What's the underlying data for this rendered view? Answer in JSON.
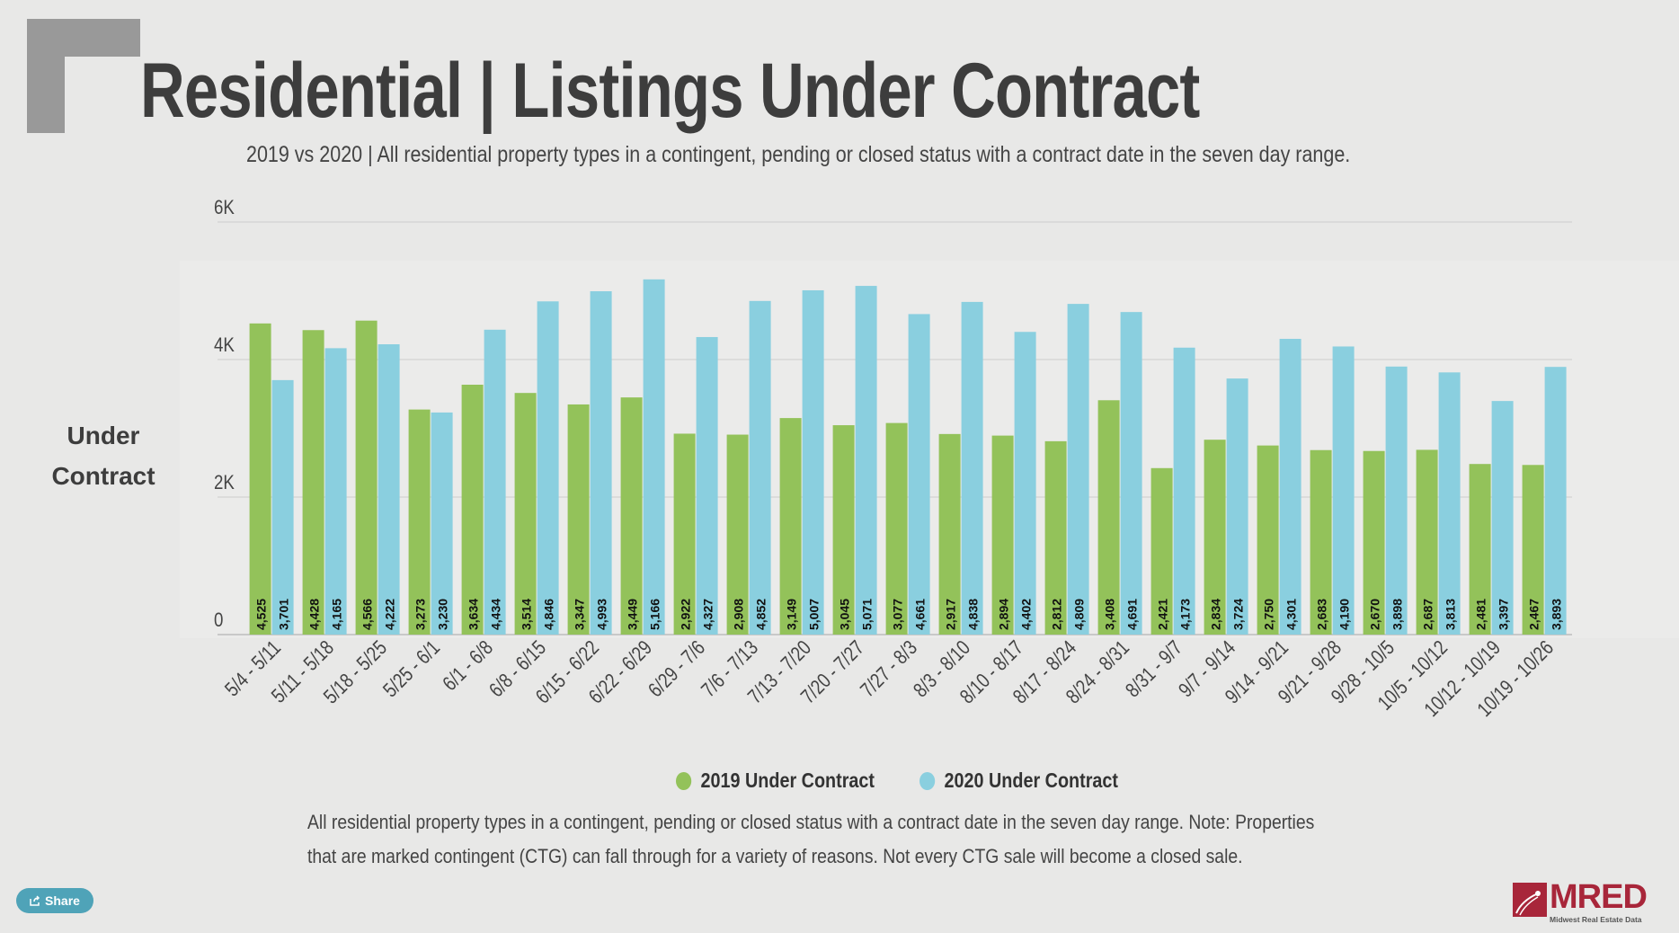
{
  "header": {
    "title": "Residential | Listings Under Contract",
    "subtitle": "2019 vs 2020 | All residential property types in a contingent, pending or closed status with a contract date in the seven day range."
  },
  "chart_data": {
    "type": "bar",
    "title": "Residential | Listings Under Contract",
    "ylabel": "Under Contract",
    "xlabel": "",
    "ylim": [
      0,
      6000
    ],
    "yticks": [
      {
        "value": 0,
        "label": "0"
      },
      {
        "value": 2000,
        "label": "2K"
      },
      {
        "value": 4000,
        "label": "4K"
      },
      {
        "value": 6000,
        "label": "6K"
      }
    ],
    "grid": true,
    "legend": "bottom",
    "categories": [
      "5/4 - 5/11",
      "5/11 - 5/18",
      "5/18 - 5/25",
      "5/25 - 6/1",
      "6/1 - 6/8",
      "6/8 - 6/15",
      "6/15 - 6/22",
      "6/22 - 6/29",
      "6/29 - 7/6",
      "7/6 - 7/13",
      "7/13 - 7/20",
      "7/20 - 7/27",
      "7/27 - 8/3",
      "8/3 - 8/10",
      "8/10 - 8/17",
      "8/17 - 8/24",
      "8/24 - 8/31",
      "8/31 - 9/7",
      "9/7 - 9/14",
      "9/14 - 9/21",
      "9/21 - 9/28",
      "9/28 - 10/5",
      "10/5 - 10/12",
      "10/12 - 10/19",
      "10/19 - 10/26"
    ],
    "series": [
      {
        "name": "2019 Under Contract",
        "color": "#93c25a",
        "values": [
          4525,
          4428,
          4566,
          3273,
          3634,
          3514,
          3347,
          3449,
          2922,
          2908,
          3149,
          3045,
          3077,
          2917,
          2894,
          2812,
          3408,
          2421,
          2834,
          2750,
          2683,
          2670,
          2687,
          2481,
          2467
        ]
      },
      {
        "name": "2020 Under Contract",
        "color": "#8acfdf",
        "values": [
          3701,
          4165,
          4222,
          3230,
          4434,
          4846,
          4993,
          5166,
          4327,
          4852,
          5007,
          5071,
          4661,
          4838,
          4402,
          4809,
          4691,
          4173,
          3724,
          4301,
          4190,
          3898,
          3813,
          3397,
          3893
        ]
      }
    ]
  },
  "footnote": "All residential property types in a contingent, pending or closed status with a contract date in the seven day range. Note: Properties that are marked contingent (CTG) can fall through for a variety of reasons. Not every CTG sale will become a closed sale.",
  "share": {
    "label": "Share",
    "icon": "share-icon"
  },
  "logo": {
    "text": "MRED",
    "subtext": "Midwest Real Estate Data",
    "color": "#a8263a"
  }
}
